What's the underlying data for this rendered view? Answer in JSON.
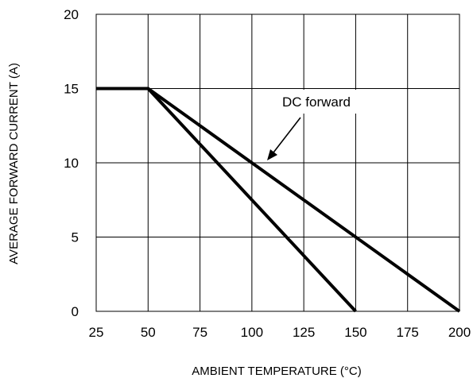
{
  "chart_data": {
    "type": "line",
    "title": "",
    "xlabel": "AMBIENT TEMPERATURE (°C)",
    "ylabel": "AVERAGE FORWARD CURRENT (A)",
    "xlim": [
      25,
      200
    ],
    "ylim": [
      0,
      20
    ],
    "x_ticks": [
      "25",
      "50",
      "75",
      "100",
      "125",
      "150",
      "175",
      "200"
    ],
    "y_ticks": [
      "0",
      "5",
      "10",
      "15",
      "20"
    ],
    "grid": true,
    "legend": "none",
    "series": [
      {
        "x": [
          25,
          50,
          150
        ],
        "y": [
          15,
          15,
          0
        ]
      },
      {
        "x": [
          25,
          50,
          200
        ],
        "y": [
          15,
          15,
          0
        ]
      }
    ],
    "annotations": [
      {
        "text": "DC forward",
        "points_to": {
          "x": 106,
          "y": 10.3
        }
      }
    ]
  }
}
